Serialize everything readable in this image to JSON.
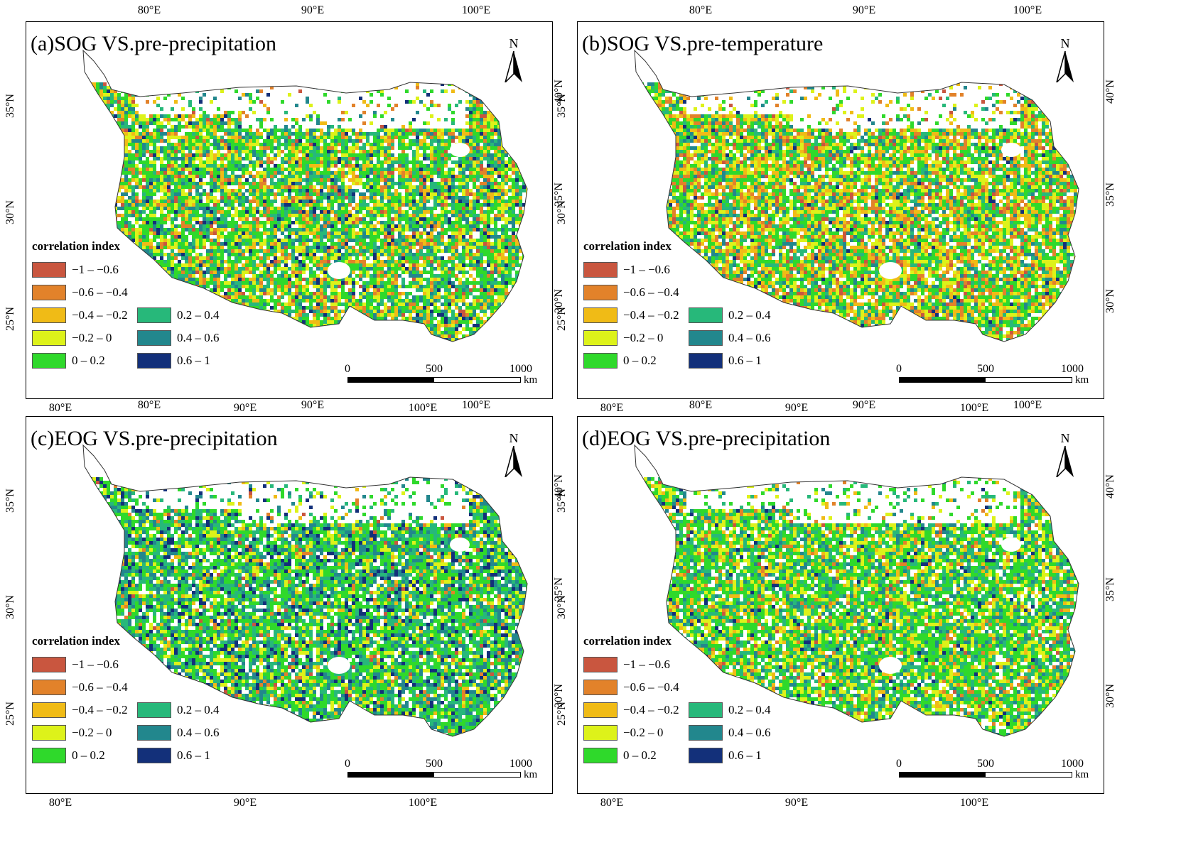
{
  "axes": {
    "lon_labels": [
      "80°E",
      "90°E",
      "100°E"
    ],
    "lat_labels_left": [
      "35°N",
      "30°N",
      "25°N"
    ],
    "lat_labels_right": [
      "40°N",
      "35°N",
      "30°N"
    ]
  },
  "legend": {
    "title": "correlation index",
    "classes": [
      {
        "label": "−1 – −0.6",
        "color": "#c9563f"
      },
      {
        "label": "−0.6 – −0.4",
        "color": "#e2822a"
      },
      {
        "label": "−0.4 – −0.2",
        "color": "#f0bb16"
      },
      {
        "label": "−0.2 – 0",
        "color": "#ddf21a"
      },
      {
        "label": "0 – 0.2",
        "color": "#2fd92b"
      },
      {
        "label": "0.2 – 0.4",
        "color": "#27b87a"
      },
      {
        "label": "0.4 – 0.6",
        "color": "#22878d"
      },
      {
        "label": "0.6 – 1",
        "color": "#13307a"
      }
    ]
  },
  "north_arrow": {
    "letter": "N"
  },
  "scale_bar": {
    "ticks": [
      "0",
      "500",
      "1000"
    ],
    "unit": "km"
  },
  "panels": [
    {
      "title": "(a)SOG VS.pre-precipitation",
      "palette_bias": [
        0.03,
        0.08,
        0.1,
        0.17,
        0.3,
        0.16,
        0.12,
        0.04
      ]
    },
    {
      "title": "(b)SOG VS.pre-temperature",
      "palette_bias": [
        0.04,
        0.12,
        0.16,
        0.2,
        0.26,
        0.12,
        0.08,
        0.02
      ]
    },
    {
      "title": "(c)EOG VS.pre-precipitation",
      "palette_bias": [
        0.01,
        0.02,
        0.04,
        0.12,
        0.3,
        0.22,
        0.19,
        0.1
      ]
    },
    {
      "title": "(d)EOG VS.pre-precipitation",
      "palette_bias": [
        0.01,
        0.05,
        0.09,
        0.18,
        0.34,
        0.2,
        0.11,
        0.02
      ]
    }
  ]
}
